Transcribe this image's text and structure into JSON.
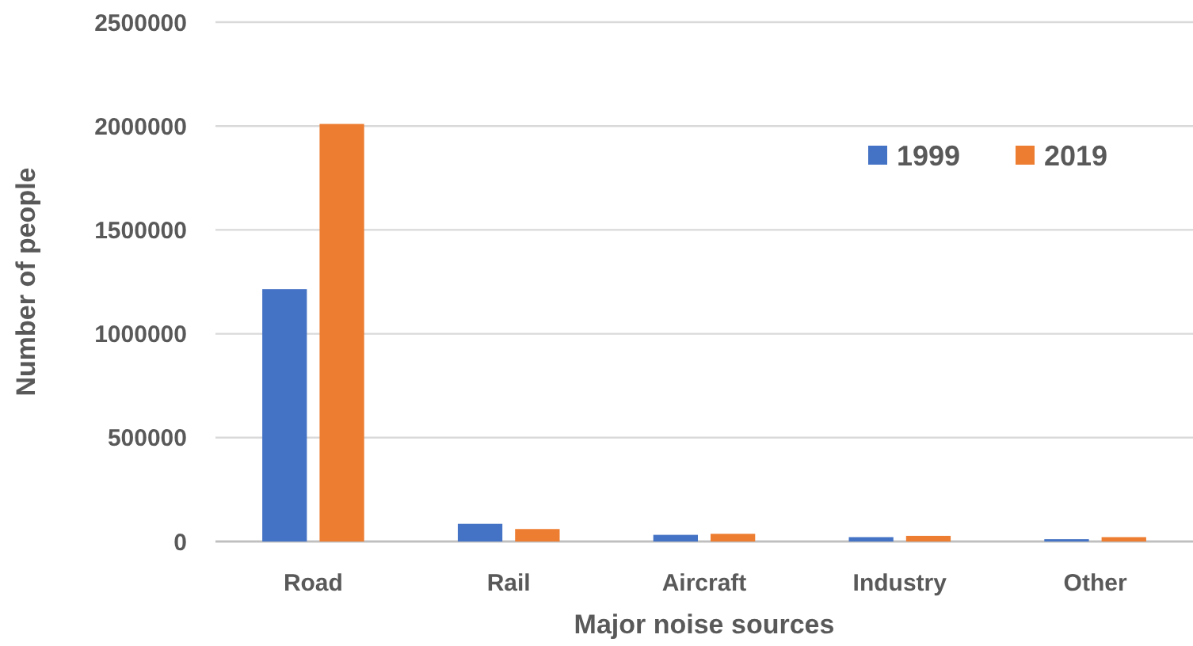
{
  "chart_data": {
    "type": "bar",
    "xlabel": "Major noise sources",
    "ylabel": "Number of people",
    "categories": [
      "Road",
      "Rail",
      "Aircraft",
      "Industry",
      "Other"
    ],
    "series": [
      {
        "name": "1999",
        "color": "#4472c4",
        "values": [
          1215000,
          85000,
          32000,
          21000,
          11000
        ]
      },
      {
        "name": "2019",
        "color": "#ed7d31",
        "values": [
          2010000,
          60000,
          37000,
          27000,
          21000
        ]
      }
    ],
    "ylim": [
      0,
      2500000
    ],
    "yticks": [
      0,
      500000,
      1000000,
      1500000,
      2000000,
      2500000
    ],
    "grid": "y",
    "legend": "top right"
  }
}
